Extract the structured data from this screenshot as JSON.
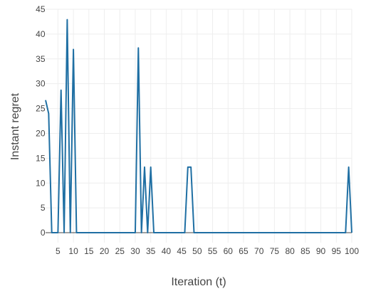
{
  "chart_data": {
    "type": "line",
    "xlabel": "Iteration (t)",
    "ylabel": "Instant regret",
    "xlim": [
      1,
      100
    ],
    "ylim": [
      -2,
      45
    ],
    "x_ticks": [
      5,
      10,
      15,
      20,
      25,
      30,
      35,
      40,
      45,
      50,
      55,
      60,
      65,
      70,
      75,
      80,
      85,
      90,
      95,
      100
    ],
    "y_ticks": [
      0,
      5,
      10,
      15,
      20,
      25,
      30,
      35,
      40,
      45
    ],
    "grid": true,
    "legend": "none",
    "colors": {
      "series": "#1f6fa3",
      "grid": "#eeeeee",
      "axis_text": "#444444"
    },
    "series": [
      {
        "x": [
          1,
          2,
          3,
          4,
          5,
          6,
          7,
          8,
          9,
          10,
          11,
          12,
          13,
          14,
          15,
          16,
          17,
          18,
          19,
          20,
          21,
          22,
          23,
          24,
          25,
          26,
          27,
          28,
          29,
          30,
          31,
          32,
          33,
          34,
          35,
          36,
          37,
          38,
          39,
          40,
          41,
          42,
          43,
          44,
          45,
          46,
          47,
          48,
          49,
          50,
          51,
          52,
          53,
          54,
          55,
          56,
          57,
          58,
          59,
          60,
          61,
          62,
          63,
          64,
          65,
          66,
          67,
          68,
          69,
          70,
          71,
          72,
          73,
          74,
          75,
          76,
          77,
          78,
          79,
          80,
          81,
          82,
          83,
          84,
          85,
          86,
          87,
          88,
          89,
          90,
          91,
          92,
          93,
          94,
          95,
          96,
          97,
          98,
          99,
          100
        ],
        "values": [
          26.7,
          24,
          0,
          0,
          0,
          28.7,
          0,
          42.9,
          0,
          36.9,
          0,
          0,
          0,
          0,
          0,
          0,
          0,
          0,
          0,
          0,
          0,
          0,
          0,
          0,
          0,
          0,
          0,
          0,
          0,
          0,
          37.2,
          0,
          13.2,
          0,
          13.2,
          0,
          0,
          0,
          0,
          0,
          0,
          0,
          0,
          0,
          0,
          0,
          13.2,
          13.2,
          0,
          0,
          0,
          0,
          0,
          0,
          0,
          0,
          0,
          0,
          0,
          0,
          0,
          0,
          0,
          0,
          0,
          0,
          0,
          0,
          0,
          0,
          0,
          0,
          0,
          0,
          0,
          0,
          0,
          0,
          0,
          0,
          0,
          0,
          0,
          0,
          0,
          0,
          0,
          0,
          0,
          0,
          0,
          0,
          0,
          0,
          0,
          0,
          0,
          0,
          13.2,
          0
        ]
      }
    ]
  }
}
